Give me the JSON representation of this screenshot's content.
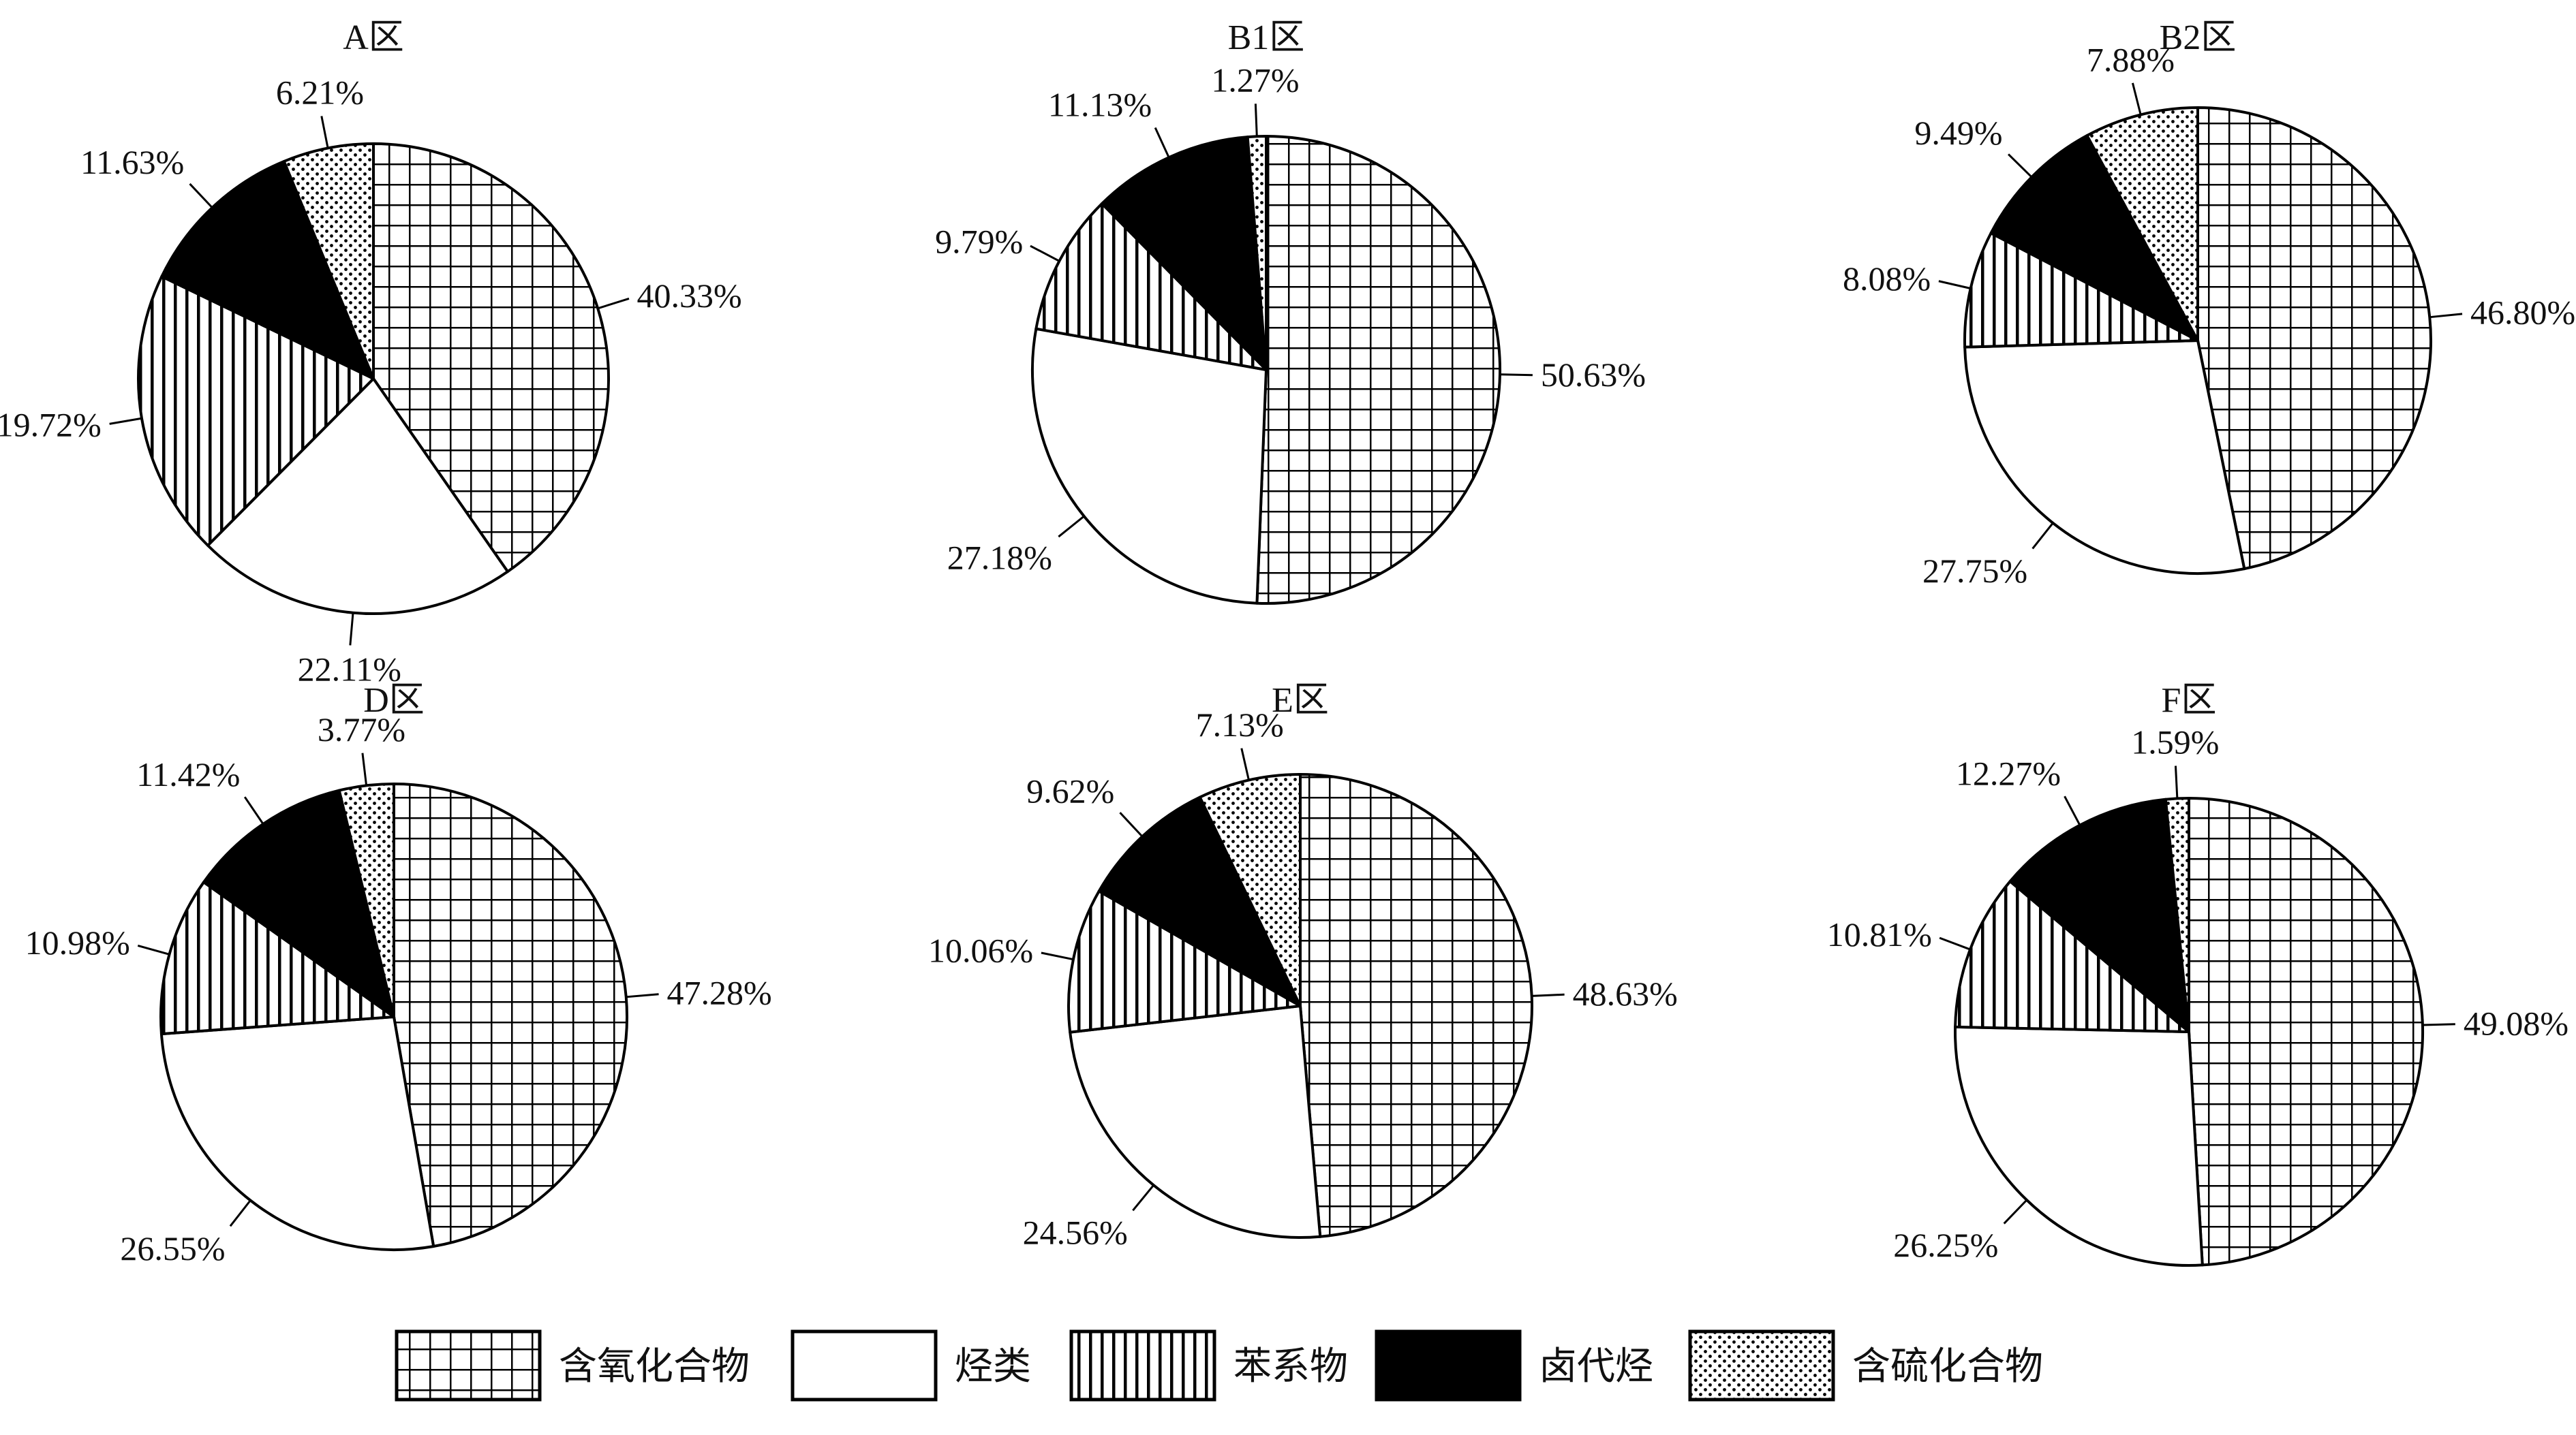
{
  "chart_data": {
    "type": "pie",
    "series_names": [
      "含氧化合物",
      "烃类",
      "苯系物",
      "卤代烃",
      "含硫化合物"
    ],
    "series_patterns": [
      "grid",
      "white",
      "vertical-lines",
      "solid-black",
      "dots"
    ],
    "colors": {
      "fill_black": "#000000",
      "fill_white": "#ffffff",
      "stroke": "#000000"
    },
    "legend_position": "bottom",
    "charts": [
      {
        "title": "A区",
        "values": [
          40.33,
          22.11,
          19.72,
          11.63,
          6.21
        ],
        "labels": [
          "40.33%",
          "22.11%",
          "19.72%",
          "11.63%",
          "6.21%"
        ]
      },
      {
        "title": "B1区",
        "values": [
          50.63,
          27.18,
          9.79,
          11.13,
          1.27
        ],
        "labels": [
          "50.63%",
          "27.18%",
          "9.79%",
          "11.13%",
          "1.27%"
        ]
      },
      {
        "title": "B2区",
        "values": [
          46.8,
          27.75,
          8.08,
          9.49,
          7.88
        ],
        "labels": [
          "46.80%",
          "27.75%",
          "8.08%",
          "9.49%",
          "7.88%"
        ]
      },
      {
        "title": "D区",
        "values": [
          47.28,
          26.55,
          10.98,
          11.42,
          3.77
        ],
        "labels": [
          "47.28%",
          "26.55%",
          "10.98%",
          "11.42%",
          "3.77%"
        ]
      },
      {
        "title": "E区",
        "values": [
          48.63,
          24.56,
          10.06,
          9.62,
          7.13
        ],
        "labels": [
          "48.63%",
          "24.56%",
          "10.06%",
          "9.62%",
          "7.13%"
        ]
      },
      {
        "title": "F区",
        "values": [
          49.08,
          26.25,
          10.81,
          12.27,
          1.59
        ],
        "labels": [
          "49.08%",
          "26.25%",
          "10.81%",
          "12.27%",
          "1.59%"
        ]
      }
    ]
  }
}
